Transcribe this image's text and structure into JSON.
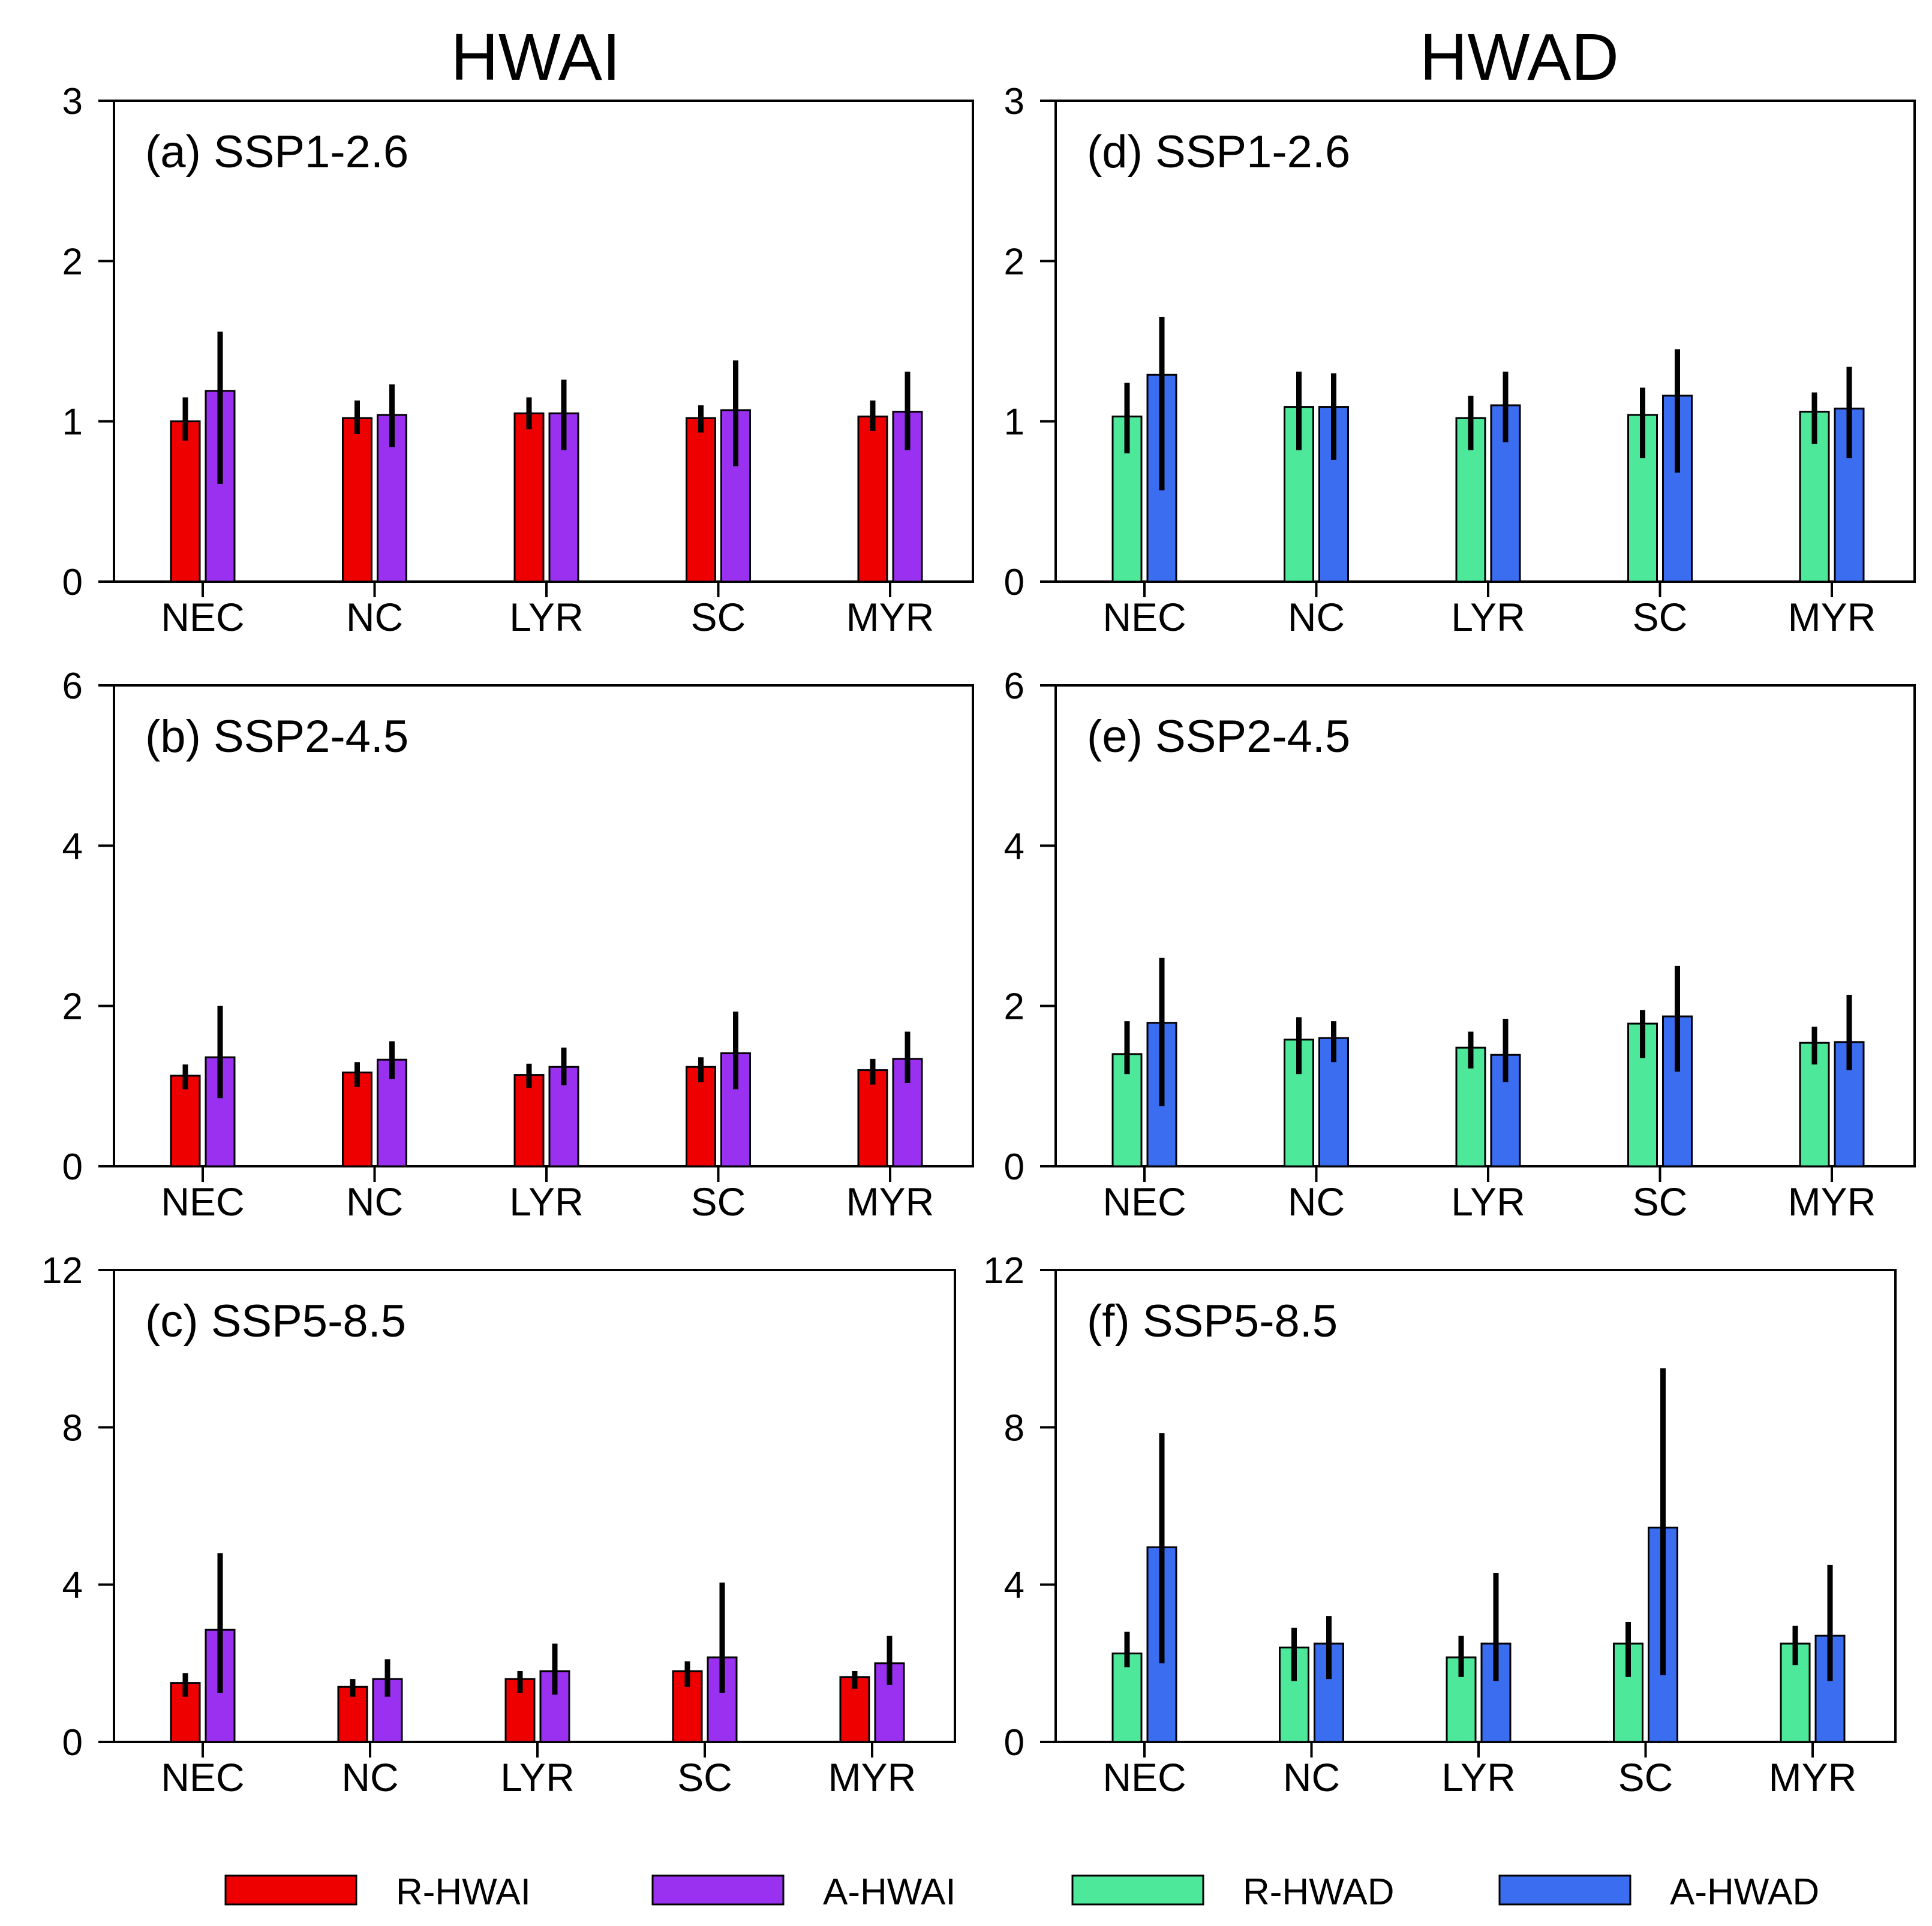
{
  "column_titles": [
    "HWAI",
    "HWAD"
  ],
  "legend": [
    {
      "label": "R-HWAI",
      "color": "#ee0000"
    },
    {
      "label": "A-HWAI",
      "color": "#9a30f0"
    },
    {
      "label": "R-HWAD",
      "color": "#4de89a"
    },
    {
      "label": "A-HWAD",
      "color": "#3a6df0"
    }
  ],
  "chart_data": [
    {
      "type": "bar",
      "id": "a",
      "title": "(a) SSP1-2.6",
      "categories": [
        "NEC",
        "NC",
        "LYR",
        "SC",
        "MYR"
      ],
      "ylim": [
        0,
        3
      ],
      "yticks": [
        "0",
        "1",
        "2",
        "3"
      ],
      "series": [
        {
          "name": "R-HWAI",
          "color": "#ee0000",
          "values": [
            1.0,
            1.02,
            1.05,
            1.02,
            1.03
          ],
          "err_low": [
            0.88,
            0.92,
            0.95,
            0.93,
            0.94
          ],
          "err_high": [
            1.15,
            1.13,
            1.15,
            1.1,
            1.13
          ]
        },
        {
          "name": "A-HWAI",
          "color": "#9a30f0",
          "values": [
            1.19,
            1.04,
            1.05,
            1.07,
            1.06
          ],
          "err_low": [
            0.61,
            0.84,
            0.82,
            0.72,
            0.82
          ],
          "err_high": [
            1.56,
            1.23,
            1.26,
            1.38,
            1.31
          ]
        }
      ]
    },
    {
      "type": "bar",
      "id": "b",
      "title": "(b) SSP2-4.5",
      "categories": [
        "NEC",
        "NC",
        "LYR",
        "SC",
        "MYR"
      ],
      "ylim": [
        0,
        6
      ],
      "yticks": [
        "0",
        "2",
        "4",
        "6"
      ],
      "series": [
        {
          "name": "R-HWAI",
          "color": "#ee0000",
          "values": [
            1.13,
            1.17,
            1.14,
            1.24,
            1.2
          ],
          "err_low": [
            0.96,
            0.99,
            0.98,
            1.05,
            1.02
          ],
          "err_high": [
            1.27,
            1.3,
            1.28,
            1.36,
            1.34
          ]
        },
        {
          "name": "A-HWAI",
          "color": "#9a30f0",
          "values": [
            1.36,
            1.33,
            1.24,
            1.41,
            1.34
          ],
          "err_low": [
            0.85,
            1.09,
            1.01,
            0.96,
            1.04
          ],
          "err_high": [
            2.0,
            1.56,
            1.48,
            1.93,
            1.68
          ]
        }
      ]
    },
    {
      "type": "bar",
      "id": "c",
      "title": "(c) SSP5-8.5",
      "categories": [
        "NEC",
        "NC",
        "LYR",
        "SC",
        "MYR"
      ],
      "ylim": [
        0,
        12
      ],
      "yticks": [
        "0",
        "4",
        "8",
        "12"
      ],
      "series": [
        {
          "name": "R-HWAI",
          "color": "#ee0000",
          "values": [
            1.5,
            1.4,
            1.6,
            1.8,
            1.65
          ],
          "err_low": [
            1.15,
            1.15,
            1.25,
            1.4,
            1.35
          ],
          "err_high": [
            1.75,
            1.6,
            1.8,
            2.05,
            1.8
          ]
        },
        {
          "name": "A-HWAI",
          "color": "#9a30f0",
          "values": [
            2.85,
            1.6,
            1.8,
            2.15,
            2.0
          ],
          "err_low": [
            1.25,
            1.15,
            1.2,
            1.25,
            1.45
          ],
          "err_high": [
            4.8,
            2.1,
            2.5,
            4.05,
            2.7
          ]
        }
      ]
    },
    {
      "type": "bar",
      "id": "d",
      "title": "(d) SSP1-2.6",
      "categories": [
        "NEC",
        "NC",
        "LYR",
        "SC",
        "MYR"
      ],
      "ylim": [
        0,
        3
      ],
      "yticks": [
        "0",
        "1",
        "2",
        "3"
      ],
      "series": [
        {
          "name": "R-HWAD",
          "color": "#4de89a",
          "values": [
            1.03,
            1.09,
            1.02,
            1.04,
            1.06
          ],
          "err_low": [
            0.8,
            0.82,
            0.82,
            0.77,
            0.86
          ],
          "err_high": [
            1.24,
            1.31,
            1.16,
            1.21,
            1.18
          ]
        },
        {
          "name": "A-HWAD",
          "color": "#3a6df0",
          "values": [
            1.29,
            1.09,
            1.1,
            1.16,
            1.08
          ],
          "err_low": [
            0.57,
            0.76,
            0.87,
            0.68,
            0.77
          ],
          "err_high": [
            1.65,
            1.3,
            1.31,
            1.45,
            1.34
          ]
        }
      ]
    },
    {
      "type": "bar",
      "id": "e",
      "title": "(e) SSP2-4.5",
      "categories": [
        "NEC",
        "NC",
        "LYR",
        "SC",
        "MYR"
      ],
      "ylim": [
        0,
        6
      ],
      "yticks": [
        "0",
        "2",
        "4",
        "6"
      ],
      "series": [
        {
          "name": "R-HWAD",
          "color": "#4de89a",
          "values": [
            1.4,
            1.58,
            1.48,
            1.78,
            1.54
          ],
          "err_low": [
            1.15,
            1.15,
            1.22,
            1.35,
            1.27
          ],
          "err_high": [
            1.81,
            1.86,
            1.68,
            1.95,
            1.74
          ]
        },
        {
          "name": "A-HWAD",
          "color": "#3a6df0",
          "values": [
            1.79,
            1.6,
            1.39,
            1.87,
            1.55
          ],
          "err_low": [
            0.75,
            1.3,
            1.05,
            1.18,
            1.2
          ],
          "err_high": [
            2.6,
            1.81,
            1.84,
            2.5,
            2.14
          ]
        }
      ]
    },
    {
      "type": "bar",
      "id": "f",
      "title": "(f) SSP5-8.5",
      "categories": [
        "NEC",
        "NC",
        "LYR",
        "SC",
        "MYR"
      ],
      "ylim": [
        0,
        12
      ],
      "yticks": [
        "0",
        "4",
        "8",
        "12"
      ],
      "series": [
        {
          "name": "R-HWAD",
          "color": "#4de89a",
          "values": [
            2.25,
            2.4,
            2.15,
            2.5,
            2.5
          ],
          "err_low": [
            1.9,
            1.55,
            1.65,
            1.65,
            1.95
          ],
          "err_high": [
            2.8,
            2.9,
            2.7,
            3.05,
            2.95
          ]
        },
        {
          "name": "A-HWAD",
          "color": "#3a6df0",
          "values": [
            4.95,
            2.5,
            2.5,
            5.45,
            2.7
          ],
          "err_low": [
            2.0,
            1.6,
            1.55,
            1.7,
            1.55
          ],
          "err_high": [
            7.85,
            3.2,
            4.3,
            9.5,
            4.5
          ]
        }
      ]
    }
  ]
}
